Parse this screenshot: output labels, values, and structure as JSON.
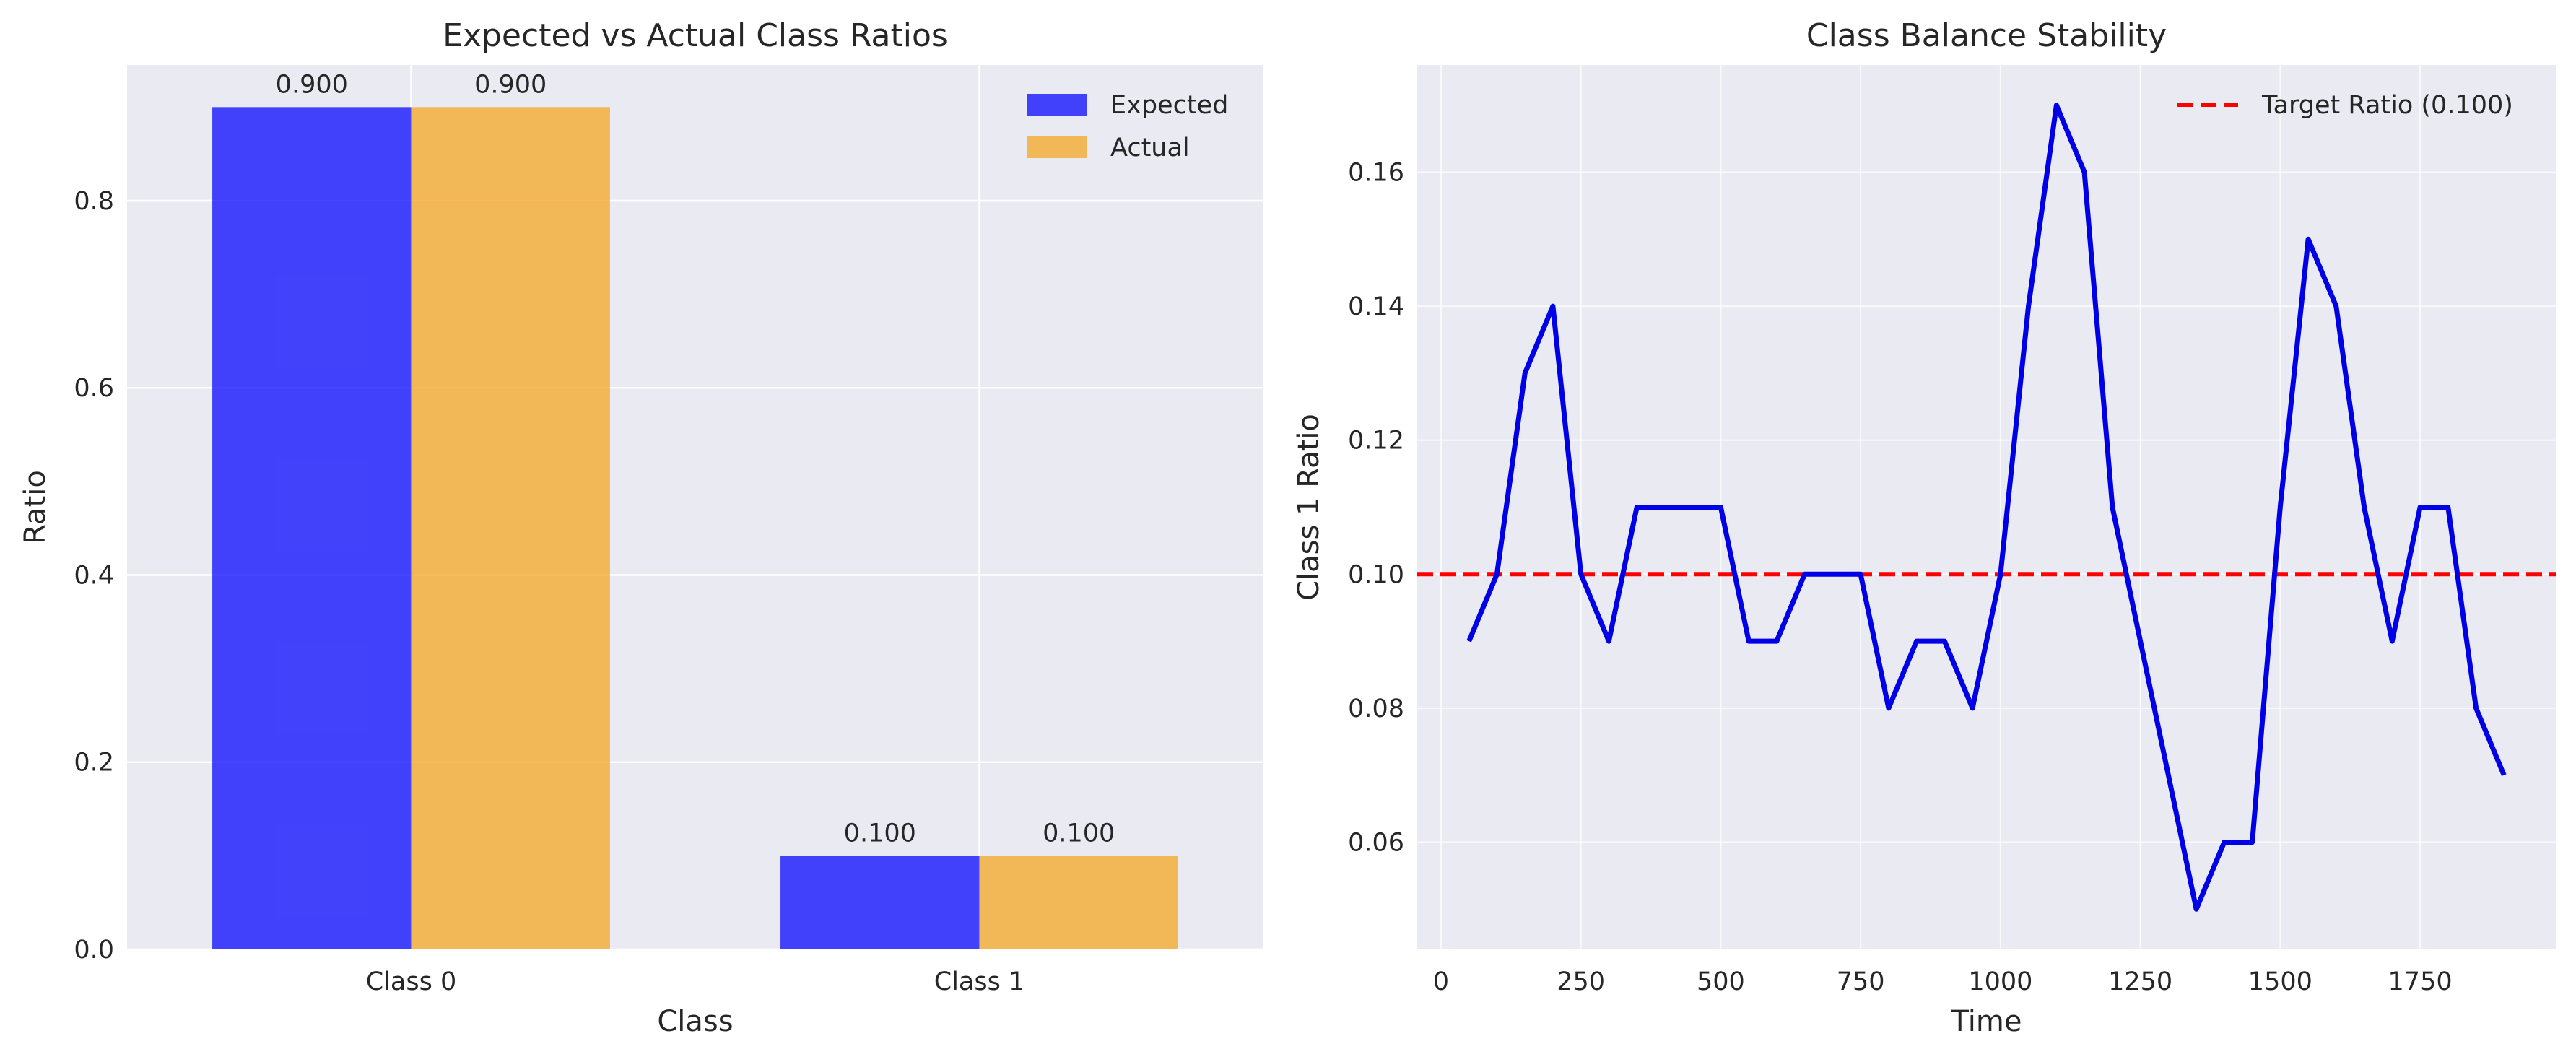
{
  "colors": {
    "plot_bg": "#eaeaf2",
    "grid": "#ffffff",
    "expected": "#0000ff",
    "actual": "#f5a31a",
    "stability_line": "#0000e6",
    "target_line": "#ff0000",
    "text": "#262626"
  },
  "chart_data": [
    {
      "type": "bar",
      "title": "Expected vs Actual Class Ratios",
      "xlabel": "Class",
      "ylabel": "Ratio",
      "categories": [
        "Class 0",
        "Class 1"
      ],
      "series": [
        {
          "name": "Expected",
          "values": [
            0.9,
            0.1
          ],
          "labels": [
            "0.900",
            "0.100"
          ]
        },
        {
          "name": "Actual",
          "values": [
            0.9,
            0.1
          ],
          "labels": [
            "0.900",
            "0.100"
          ]
        }
      ],
      "ylim": [
        0,
        0.945
      ],
      "yticks": [
        0.0,
        0.2,
        0.4,
        0.6,
        0.8
      ],
      "ytick_labels": [
        "0.0",
        "0.2",
        "0.4",
        "0.6",
        "0.8"
      ],
      "grid": true,
      "legend": "top-right"
    },
    {
      "type": "line",
      "title": "Class Balance Stability",
      "xlabel": "Time",
      "ylabel": "Class 1 Ratio",
      "x": [
        50,
        100,
        150,
        200,
        250,
        300,
        350,
        400,
        450,
        500,
        550,
        600,
        650,
        700,
        750,
        800,
        850,
        900,
        950,
        1000,
        1050,
        1100,
        1150,
        1200,
        1250,
        1300,
        1350,
        1400,
        1450,
        1500,
        1550,
        1600,
        1650,
        1700,
        1750,
        1800,
        1850,
        1900
      ],
      "series": [
        {
          "values": [
            0.09,
            0.1,
            0.13,
            0.14,
            0.1,
            0.09,
            0.11,
            0.11,
            0.11,
            0.11,
            0.09,
            0.09,
            0.1,
            0.1,
            0.1,
            0.08,
            0.09,
            0.09,
            0.08,
            0.1,
            0.14,
            0.17,
            0.16,
            0.11,
            0.09,
            0.07,
            0.05,
            0.06,
            0.06,
            0.11,
            0.15,
            0.14,
            0.11,
            0.09,
            0.11,
            0.11,
            0.08,
            0.07
          ]
        }
      ],
      "reference_line": {
        "name": "Target Ratio (0.100)",
        "y": 0.1,
        "style": "dashed"
      },
      "xlim": [
        -42.5,
        1992.5
      ],
      "ylim": [
        0.044,
        0.176
      ],
      "xticks": [
        0,
        250,
        500,
        750,
        1000,
        1250,
        1500,
        1750
      ],
      "xtick_labels": [
        "0",
        "250",
        "500",
        "750",
        "1000",
        "1250",
        "1500",
        "1750"
      ],
      "yticks": [
        0.06,
        0.08,
        0.1,
        0.12,
        0.14,
        0.16
      ],
      "ytick_labels": [
        "0.06",
        "0.08",
        "0.10",
        "0.12",
        "0.14",
        "0.16"
      ],
      "grid": true,
      "legend": "top-right"
    }
  ]
}
